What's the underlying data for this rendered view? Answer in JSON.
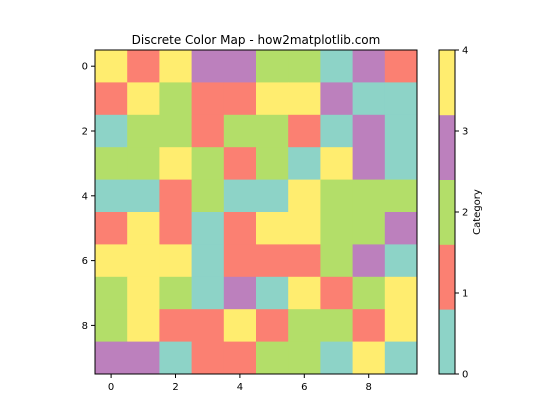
{
  "chart_data": {
    "type": "heatmap",
    "title": "Discrete Color Map - how2matplotlib.com",
    "xlabel": "",
    "ylabel": "",
    "x_ticks": [
      0,
      2,
      4,
      6,
      8
    ],
    "y_ticks": [
      0,
      2,
      4,
      6,
      8
    ],
    "xlim": [
      -0.5,
      9.5
    ],
    "ylim": [
      9.5,
      -0.5
    ],
    "categories": [
      0,
      1,
      2,
      3,
      4
    ],
    "palette": [
      "#8dd3c7",
      "#fb8072",
      "#b3de69",
      "#bc80bd",
      "#ffed6f"
    ],
    "values": [
      [
        4,
        1,
        4,
        3,
        3,
        2,
        2,
        0,
        3,
        1
      ],
      [
        1,
        4,
        2,
        1,
        1,
        4,
        4,
        3,
        0,
        0
      ],
      [
        0,
        2,
        2,
        1,
        2,
        2,
        1,
        0,
        3,
        0
      ],
      [
        2,
        2,
        4,
        2,
        1,
        2,
        0,
        4,
        3,
        0
      ],
      [
        0,
        0,
        1,
        2,
        0,
        0,
        4,
        2,
        2,
        2
      ],
      [
        1,
        4,
        1,
        0,
        1,
        4,
        4,
        2,
        2,
        3
      ],
      [
        4,
        4,
        4,
        0,
        1,
        1,
        1,
        2,
        3,
        0
      ],
      [
        2,
        4,
        2,
        0,
        3,
        0,
        4,
        1,
        2,
        4
      ],
      [
        2,
        4,
        1,
        1,
        4,
        1,
        2,
        2,
        1,
        4
      ],
      [
        3,
        3,
        0,
        1,
        1,
        2,
        2,
        0,
        4,
        0
      ]
    ],
    "colorbar": {
      "label": "Category",
      "range": [
        0,
        4
      ],
      "ticks": [
        0,
        1,
        2,
        3,
        4
      ]
    }
  }
}
